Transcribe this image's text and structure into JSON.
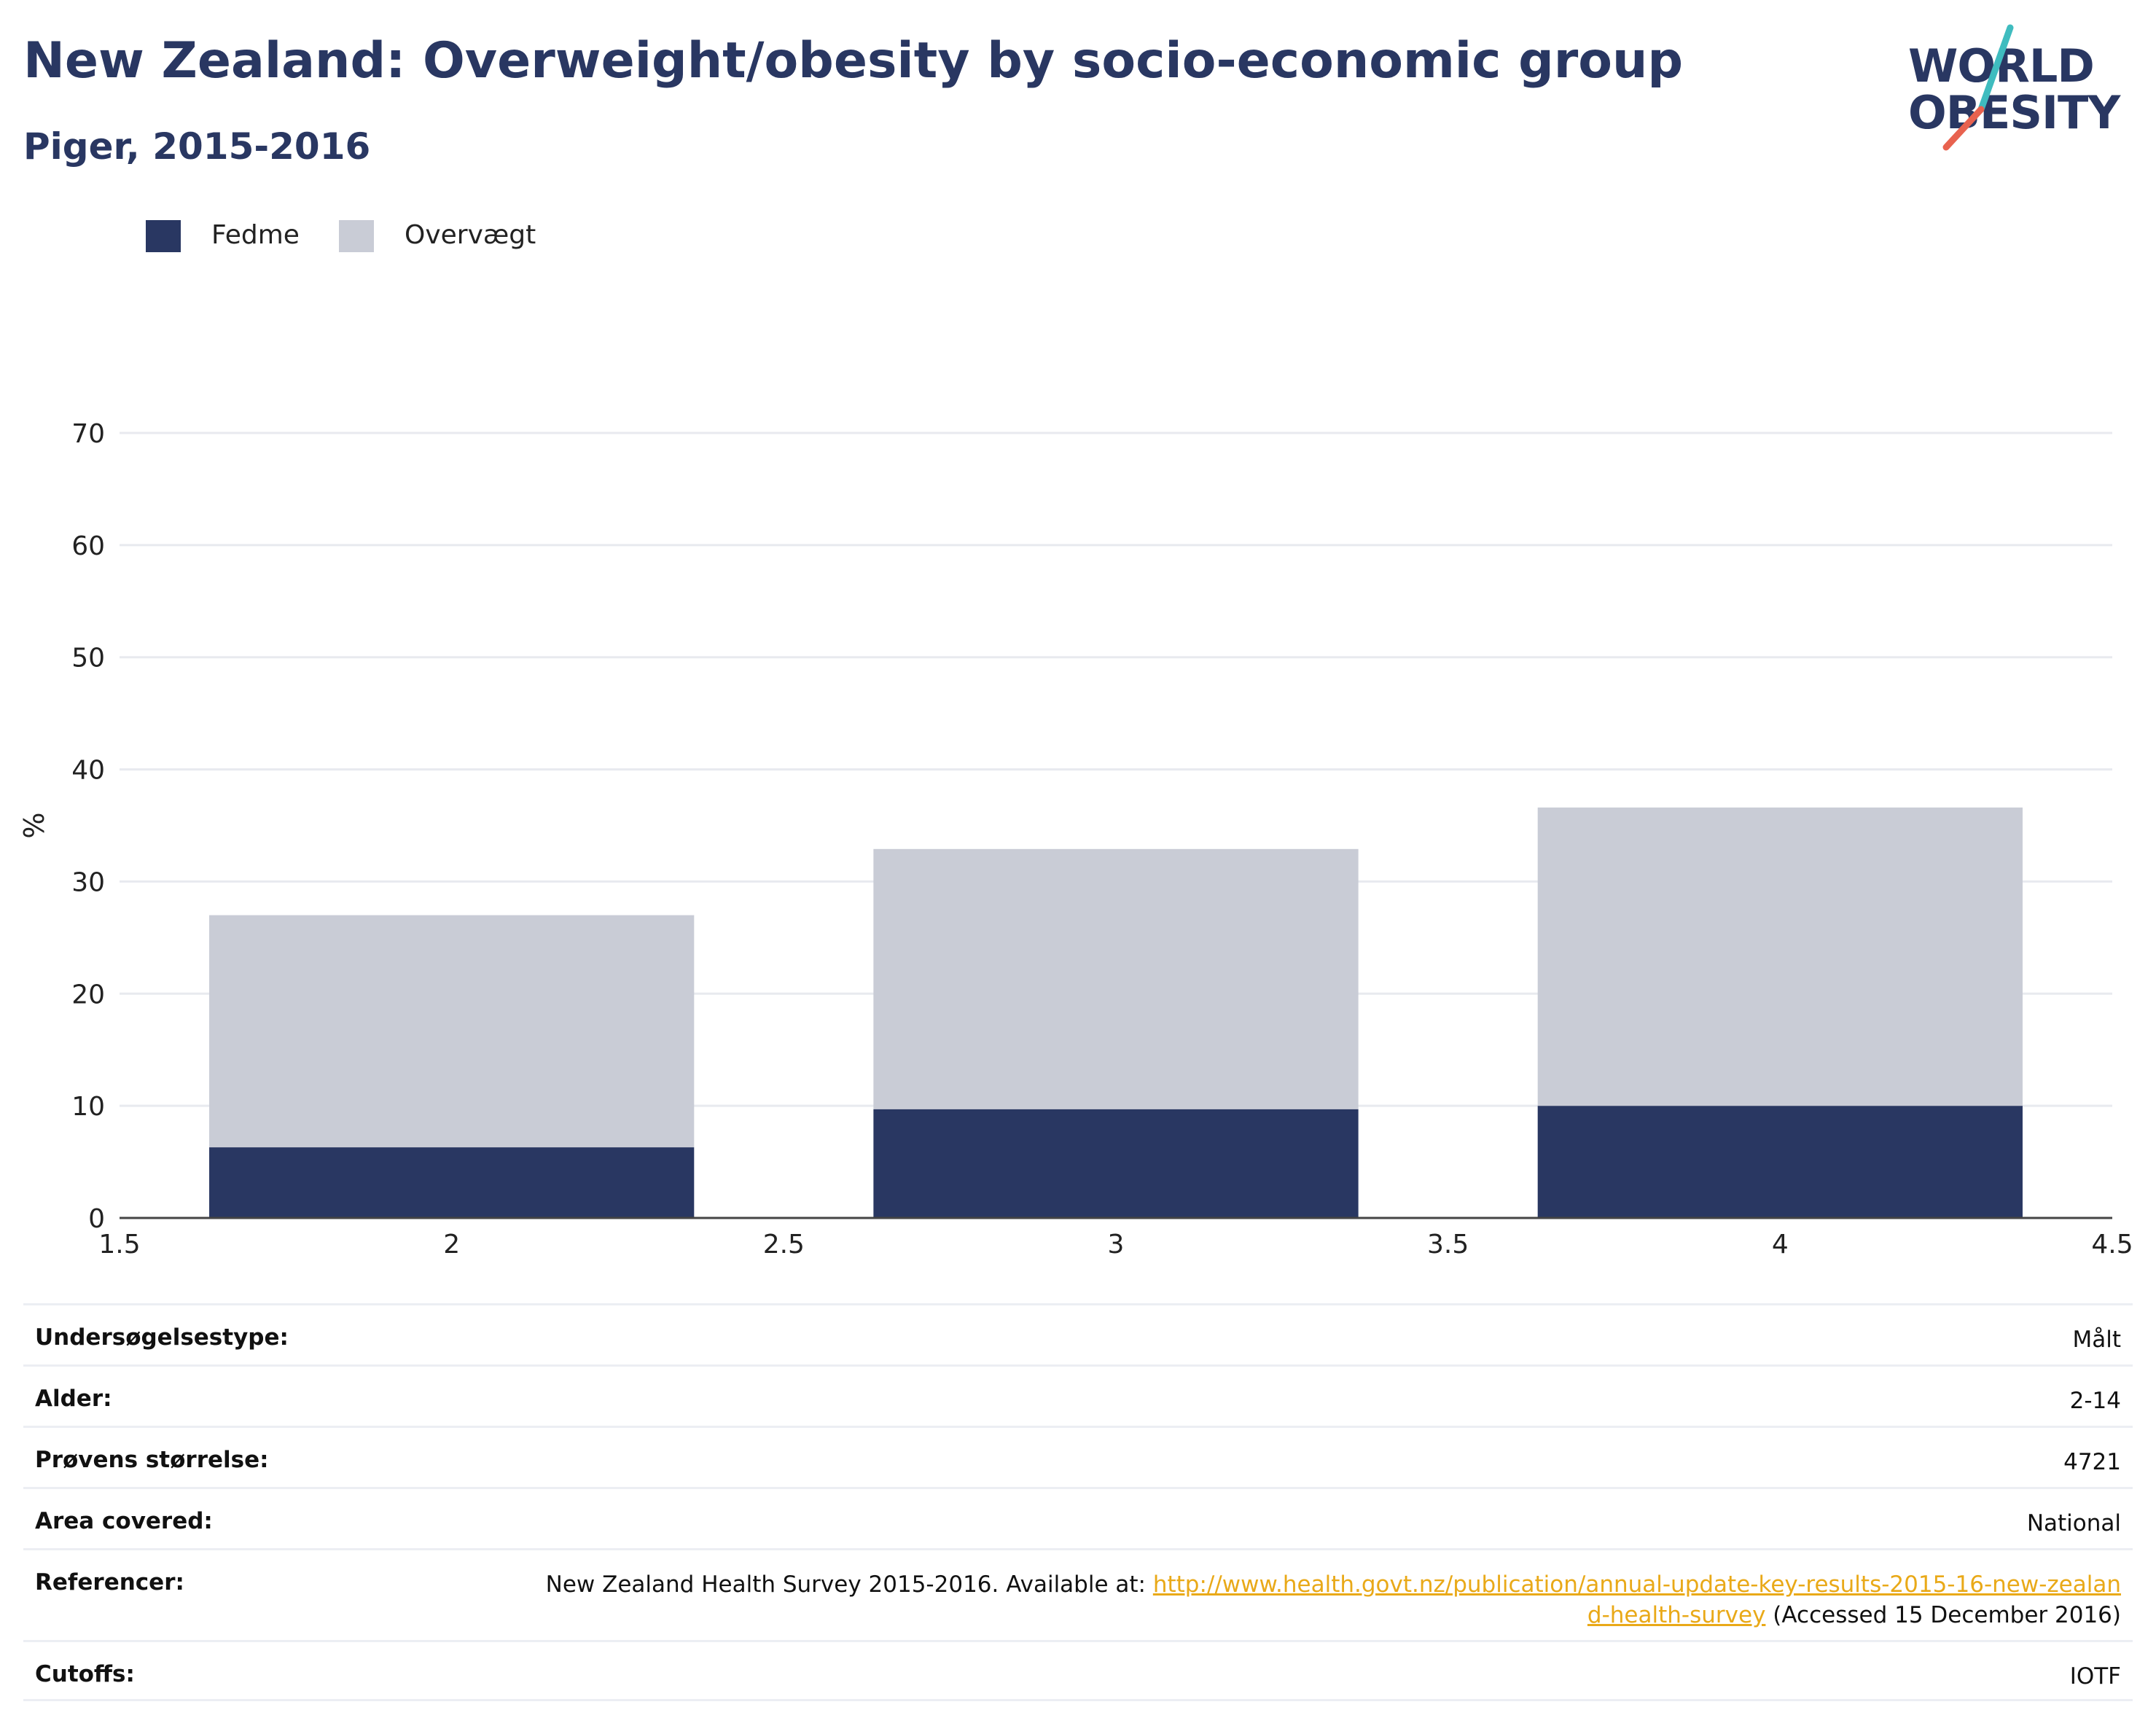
{
  "header": {
    "title": "New Zealand: Overweight/obesity by socio-economic group",
    "subtitle": "Piger, 2015-2016"
  },
  "logo": {
    "line1": "WORLD",
    "line2": "OBESITY",
    "text_color": "#293762",
    "slash_top_color": "#3fbcbf",
    "slash_bottom_color": "#e8624f"
  },
  "legend": [
    {
      "label": "Fedme",
      "color": "#293762"
    },
    {
      "label": "Overvægt",
      "color": "#c9ccd6"
    }
  ],
  "chart_data": {
    "type": "bar",
    "stacked": true,
    "x": [
      2,
      3,
      4
    ],
    "bar_width": 0.73,
    "series": [
      {
        "name": "Fedme",
        "color": "#293762",
        "values": [
          6.3,
          9.7,
          10.0
        ]
      },
      {
        "name": "Overvægt",
        "color": "#c9ccd6",
        "values": [
          20.7,
          23.2,
          26.6
        ]
      }
    ],
    "xlim": [
      1.5,
      4.5
    ],
    "ylim": [
      0,
      70
    ],
    "xticks": [
      "1.5",
      "2",
      "2.5",
      "3",
      "3.5",
      "4",
      "4.5"
    ],
    "yticks": [
      "0",
      "10",
      "20",
      "30",
      "40",
      "50",
      "60",
      "70"
    ],
    "ylabel": "%",
    "xlabel": "",
    "grid": true,
    "legend_position": "top-left"
  },
  "info": {
    "rows": [
      {
        "label": "Undersøgelsestype:",
        "value": "Målt"
      },
      {
        "label": "Alder:",
        "value": "2-14"
      },
      {
        "label": "Prøvens størrelse:",
        "value": "4721"
      },
      {
        "label": "Area covered:",
        "value": "National"
      },
      {
        "label": "Referencer:",
        "value_prefix": "New Zealand Health Survey 2015-2016. Available at: ",
        "link_text": "http://www.health.govt.nz/publication/annual-update-key-results-2015-16-new-zealand-health-survey",
        "value_suffix": " (Accessed 15 December 2016)"
      },
      {
        "label": "Cutoffs:",
        "value": "IOTF"
      }
    ],
    "link_color": "#e9a918"
  }
}
